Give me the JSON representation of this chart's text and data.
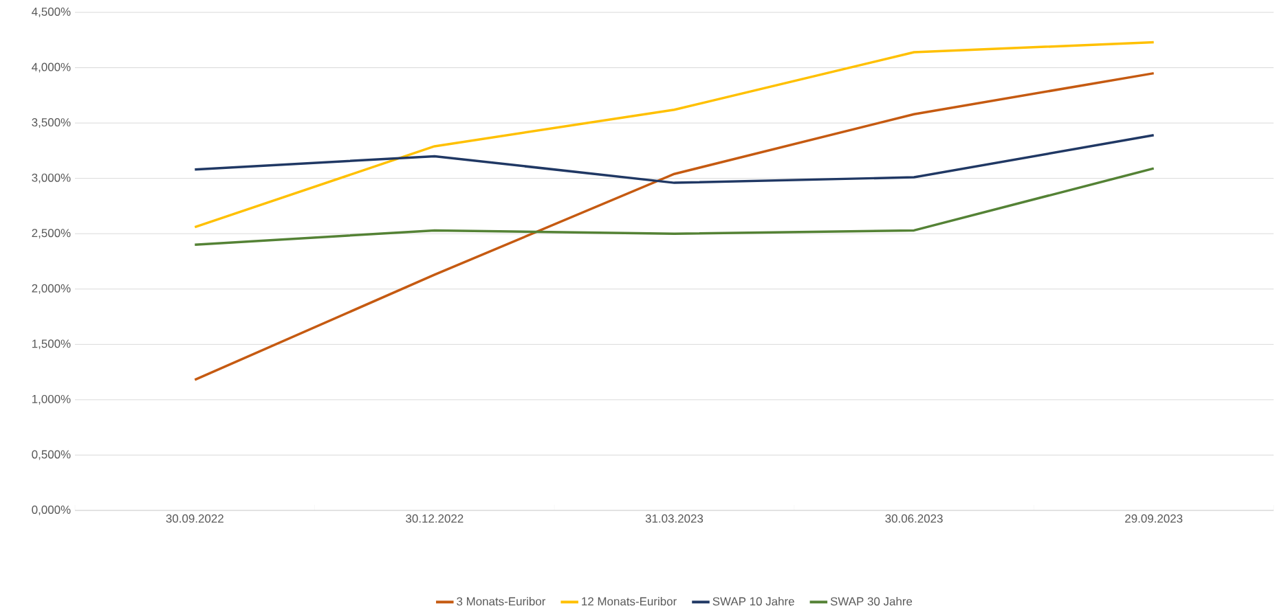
{
  "chart_data": {
    "type": "line",
    "categories": [
      "30.09.2022",
      "30.12.2022",
      "31.03.2023",
      "30.06.2023",
      "29.09.2023"
    ],
    "series": [
      {
        "name": "3 Monats-Euribor",
        "color": "#c55a11",
        "values": [
          1.18,
          2.13,
          3.04,
          3.58,
          3.95
        ]
      },
      {
        "name": "12 Monats-Euribor",
        "color": "#ffc000",
        "values": [
          2.56,
          3.29,
          3.62,
          4.14,
          4.23
        ]
      },
      {
        "name": "SWAP 10 Jahre",
        "color": "#203864",
        "values": [
          3.08,
          3.2,
          2.96,
          3.01,
          3.39
        ]
      },
      {
        "name": "SWAP 30 Jahre",
        "color": "#548235",
        "values": [
          2.4,
          2.53,
          2.5,
          2.53,
          3.09
        ]
      }
    ],
    "ylim": [
      0,
      4.5
    ],
    "yticks": [
      {
        "value": 0,
        "label": "0,000%"
      },
      {
        "value": 0.5,
        "label": "0,500%"
      },
      {
        "value": 1,
        "label": "1,000%"
      },
      {
        "value": 1.5,
        "label": "1,500%"
      },
      {
        "value": 2,
        "label": "2,000%"
      },
      {
        "value": 2.5,
        "label": "2,500%"
      },
      {
        "value": 3,
        "label": "3,000%"
      },
      {
        "value": 3.5,
        "label": "3,500%"
      },
      {
        "value": 4,
        "label": "4,000%"
      },
      {
        "value": 4.5,
        "label": "4,500%"
      }
    ],
    "grid": "y",
    "legend": "bottom",
    "marker": "none",
    "line_style": "solid"
  }
}
